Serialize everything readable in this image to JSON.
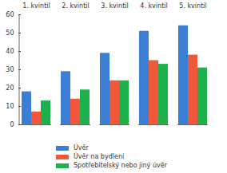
{
  "chart_data": {
    "type": "bar",
    "categories": [
      "1. kvintil",
      "2. kvintil",
      "3. kvintil",
      "4. kvintil",
      "5. kvintil"
    ],
    "series": [
      {
        "name": "Úvěr",
        "color": "#3b7fd4",
        "values": [
          18,
          29,
          39,
          51,
          54
        ]
      },
      {
        "name": "Úvěr na bydlení",
        "color": "#f0573b",
        "values": [
          7,
          14,
          24,
          35,
          38
        ]
      },
      {
        "name": "Spotřebitelský nebo jiný úvěr",
        "color": "#1db14b",
        "values": [
          13,
          19,
          24,
          33,
          31
        ]
      }
    ],
    "ylim": [
      0,
      60
    ],
    "yticks": [
      0,
      10,
      20,
      30,
      40,
      50,
      60
    ],
    "grid": false,
    "legend": "bottom"
  }
}
